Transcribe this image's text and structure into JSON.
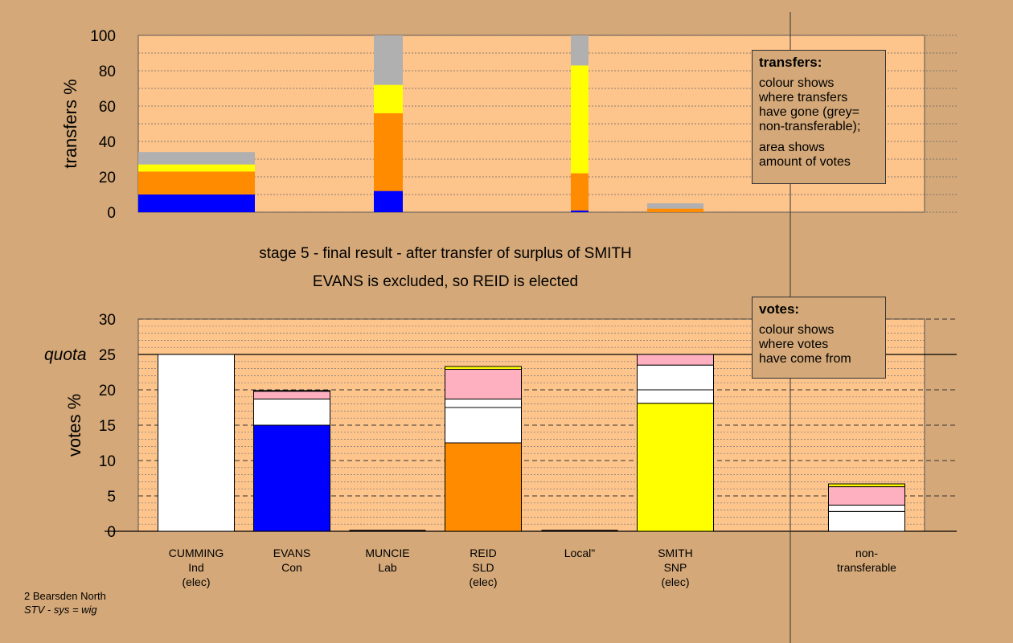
{
  "headline": {
    "line1": "stage 5 - final result - after transfer of surplus of SMITH",
    "line2": "EVANS is excluded, so REID is elected"
  },
  "footer": {
    "line1": "2 Bearsden North",
    "line2": "STV - sys = wig"
  },
  "legend_transfers": {
    "title": "transfers:",
    "line1": "colour shows",
    "line2": "where transfers",
    "line3": "have gone (grey=",
    "line4": "non-transferable);",
    "line5": "area shows",
    "line6": "amount of votes"
  },
  "legend_votes": {
    "title": "votes:",
    "line1": "colour shows",
    "line2": "where votes",
    "line3": "have come from"
  },
  "colors": {
    "background": "#d4a878",
    "plot_bg": "#fdc48c",
    "blue": "#0000ff",
    "orange": "#ff8c00",
    "yellow": "#ffff00",
    "grey": "#b0b0b0",
    "pink": "#ffb0c0",
    "white": "#ffffff"
  },
  "chart_data": [
    {
      "type": "bar",
      "chart": "transfers",
      "ylabel": "transfers %",
      "ylim": [
        0,
        100
      ],
      "yticks": [
        0,
        20,
        40,
        60,
        80,
        100
      ],
      "bars": [
        {
          "segments": [
            {
              "color": "blue",
              "value": 10
            },
            {
              "color": "orange",
              "value": 13
            },
            {
              "color": "yellow",
              "value": 4
            },
            {
              "color": "grey",
              "value": 7
            }
          ],
          "total": 35
        },
        {
          "segments": [
            {
              "color": "blue",
              "value": 12
            },
            {
              "color": "orange",
              "value": 44
            },
            {
              "color": "yellow",
              "value": 16
            },
            {
              "color": "grey",
              "value": 28
            }
          ],
          "total": 100
        },
        {
          "segments": [
            {
              "color": "blue",
              "value": 1
            },
            {
              "color": "orange",
              "value": 21
            },
            {
              "color": "yellow",
              "value": 61
            },
            {
              "color": "grey",
              "value": 17
            }
          ],
          "total": 100
        },
        {
          "segments": [
            {
              "color": "orange",
              "value": 2
            },
            {
              "color": "grey",
              "value": 3
            }
          ],
          "total": 5
        }
      ]
    },
    {
      "type": "bar",
      "chart": "votes",
      "ylabel": "votes %",
      "ylim": [
        0,
        30
      ],
      "yticks": [
        0,
        5,
        10,
        15,
        20,
        25,
        30
      ],
      "quota": {
        "label": "quota",
        "value": 25
      },
      "categories": [
        {
          "name": "CUMMING",
          "party": "Ind",
          "status": "(elec)"
        },
        {
          "name": "EVANS",
          "party": "Con",
          "status": ""
        },
        {
          "name": "MUNCIE",
          "party": "Lab",
          "status": ""
        },
        {
          "name": "REID",
          "party": "SLD",
          "status": "(elec)"
        },
        {
          "name": "Local\"",
          "party": "",
          "status": ""
        },
        {
          "name": "SMITH",
          "party": "SNP",
          "status": "(elec)"
        },
        {
          "name": "non-",
          "party": "transferable",
          "status": ""
        }
      ],
      "bars": [
        {
          "segments": [
            {
              "color": "white",
              "value": 25
            }
          ]
        },
        {
          "segments": [
            {
              "color": "blue",
              "value": 15
            },
            {
              "color": "white",
              "value": 3.7
            },
            {
              "color": "pink",
              "value": 1.1
            },
            {
              "color": "yellow",
              "value": 0.1
            }
          ]
        },
        {
          "segments": []
        },
        {
          "segments": [
            {
              "color": "orange",
              "value": 12.5
            },
            {
              "color": "white",
              "value": 5
            },
            {
              "color": "white",
              "value": 1.2
            },
            {
              "color": "pink",
              "value": 4.2
            },
            {
              "color": "yellow",
              "value": 0.4
            }
          ]
        },
        {
          "segments": []
        },
        {
          "segments": [
            {
              "color": "yellow",
              "value": 18.1
            },
            {
              "color": "white",
              "value": 1.9
            },
            {
              "color": "white",
              "value": 3.5
            },
            {
              "color": "pink",
              "value": 1.5
            }
          ]
        },
        {
          "segments": [
            {
              "color": "white",
              "value": 2.8
            },
            {
              "color": "white",
              "value": 0.9
            },
            {
              "color": "pink",
              "value": 2.6
            },
            {
              "color": "yellow",
              "value": 0.4
            }
          ]
        }
      ]
    }
  ]
}
